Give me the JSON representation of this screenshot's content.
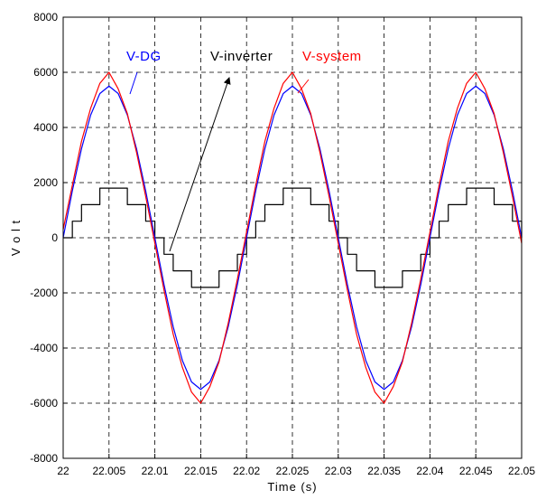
{
  "chart_data": {
    "type": "line",
    "title": "",
    "xlabel": "Time (s)",
    "ylabel": "V o l t",
    "xlim": [
      22,
      22.05
    ],
    "ylim": [
      -8000,
      8000
    ],
    "xticks": [
      22,
      22.005,
      22.01,
      22.015,
      22.02,
      22.025,
      22.03,
      22.035,
      22.04,
      22.045,
      22.05
    ],
    "xtick_labels": [
      "22",
      "22.005",
      "22.01",
      "22.015",
      "22.02",
      "22.025",
      "22.03",
      "22.035",
      "22.04",
      "22.045",
      "22.05"
    ],
    "yticks": [
      -8000,
      -6000,
      -4000,
      -2000,
      0,
      2000,
      4000,
      6000,
      8000
    ],
    "ytick_labels": [
      "-8000",
      "-6000",
      "-4000",
      "-2000",
      "0",
      "2000",
      "4000",
      "6000",
      "8000"
    ],
    "grid": true,
    "grid_style": "dashed",
    "series": [
      {
        "name": "V-DG",
        "color": "#0000ff",
        "description": "sinusoid, 50 Hz",
        "x": [
          22.0,
          22.001,
          22.002,
          22.003,
          22.004,
          22.005,
          22.006,
          22.007,
          22.008,
          22.009,
          22.01,
          22.011,
          22.012,
          22.013,
          22.014,
          22.015,
          22.016,
          22.017,
          22.018,
          22.019,
          22.02,
          22.021,
          22.022,
          22.023,
          22.024,
          22.025,
          22.026,
          22.027,
          22.028,
          22.029,
          22.03,
          22.031,
          22.032,
          22.033,
          22.034,
          22.035,
          22.036,
          22.037,
          22.038,
          22.039,
          22.04,
          22.041,
          22.042,
          22.043,
          22.044,
          22.045,
          22.046,
          22.047,
          22.048,
          22.049,
          22.05
        ],
        "y": [
          0,
          1700,
          3230,
          4450,
          5230,
          5500,
          5230,
          4450,
          3230,
          1700,
          0,
          -1700,
          -3230,
          -4450,
          -5230,
          -5500,
          -5230,
          -4450,
          -3230,
          -1700,
          0,
          1700,
          3230,
          4450,
          5230,
          5500,
          5230,
          4450,
          3230,
          1700,
          0,
          -1700,
          -3230,
          -4450,
          -5230,
          -5500,
          -5230,
          -4450,
          -3230,
          -1700,
          0,
          1700,
          3230,
          4450,
          5230,
          5500,
          5230,
          4450,
          3230,
          1700,
          0
        ]
      },
      {
        "name": "V-system",
        "color": "#ff0000",
        "description": "noisy sinusoid, 50 Hz",
        "x": [
          22.0,
          22.001,
          22.002,
          22.003,
          22.004,
          22.005,
          22.006,
          22.007,
          22.008,
          22.009,
          22.01,
          22.011,
          22.012,
          22.013,
          22.014,
          22.015,
          22.016,
          22.017,
          22.018,
          22.019,
          22.02,
          22.021,
          22.022,
          22.023,
          22.024,
          22.025,
          22.026,
          22.027,
          22.028,
          22.029,
          22.03,
          22.031,
          22.032,
          22.033,
          22.034,
          22.035,
          22.036,
          22.037,
          22.038,
          22.039,
          22.04,
          22.041,
          22.042,
          22.043,
          22.044,
          22.045,
          22.046,
          22.047,
          22.048,
          22.049,
          22.05
        ],
        "y": [
          300,
          1900,
          3500,
          4700,
          5600,
          6000,
          5400,
          4500,
          3100,
          1500,
          -200,
          -1900,
          -3500,
          -4700,
          -5600,
          -6000,
          -5400,
          -4500,
          -3100,
          -1500,
          200,
          1900,
          3500,
          4700,
          5600,
          6000,
          5400,
          4500,
          3100,
          1500,
          -200,
          -1900,
          -3500,
          -4700,
          -5600,
          -6000,
          -5400,
          -4500,
          -3100,
          -1500,
          200,
          1900,
          3500,
          4700,
          5600,
          6000,
          5400,
          4500,
          3100,
          1500,
          -200
        ]
      },
      {
        "name": "V-inverter",
        "color": "#000000",
        "description": "stepped multilevel waveform, 50 Hz",
        "x": [
          22.0,
          22.001,
          22.002,
          22.003,
          22.004,
          22.005,
          22.006,
          22.007,
          22.008,
          22.009,
          22.01,
          22.011,
          22.012,
          22.013,
          22.014,
          22.015,
          22.016,
          22.017,
          22.018,
          22.019,
          22.02,
          22.021,
          22.022,
          22.023,
          22.024,
          22.025,
          22.026,
          22.027,
          22.028,
          22.029,
          22.03,
          22.031,
          22.032,
          22.033,
          22.034,
          22.035,
          22.036,
          22.037,
          22.038,
          22.039,
          22.04,
          22.041,
          22.042,
          22.043,
          22.044,
          22.045,
          22.046,
          22.047,
          22.048,
          22.049,
          22.05
        ],
        "y": [
          0,
          600,
          1200,
          1200,
          1800,
          1800,
          1800,
          1200,
          1200,
          600,
          0,
          -600,
          -1200,
          -1200,
          -1800,
          -1800,
          -1800,
          -1200,
          -1200,
          -600,
          0,
          600,
          1200,
          1200,
          1800,
          1800,
          1800,
          1200,
          1200,
          600,
          0,
          -600,
          -1200,
          -1200,
          -1800,
          -1800,
          -1800,
          -1200,
          -1200,
          -600,
          0,
          600,
          1200,
          1200,
          1800,
          1800,
          1800,
          1200,
          1200,
          600,
          0
        ]
      }
    ],
    "annotations": [
      {
        "text": "V-DG",
        "color": "#0000ff",
        "x": 22.0065,
        "y": 6500
      },
      {
        "text": "V-inverter",
        "color": "#000000",
        "x": 22.017,
        "y": 6500
      },
      {
        "text": "V-system",
        "color": "#ff0000",
        "x": 22.0305,
        "y": 6500
      }
    ]
  }
}
